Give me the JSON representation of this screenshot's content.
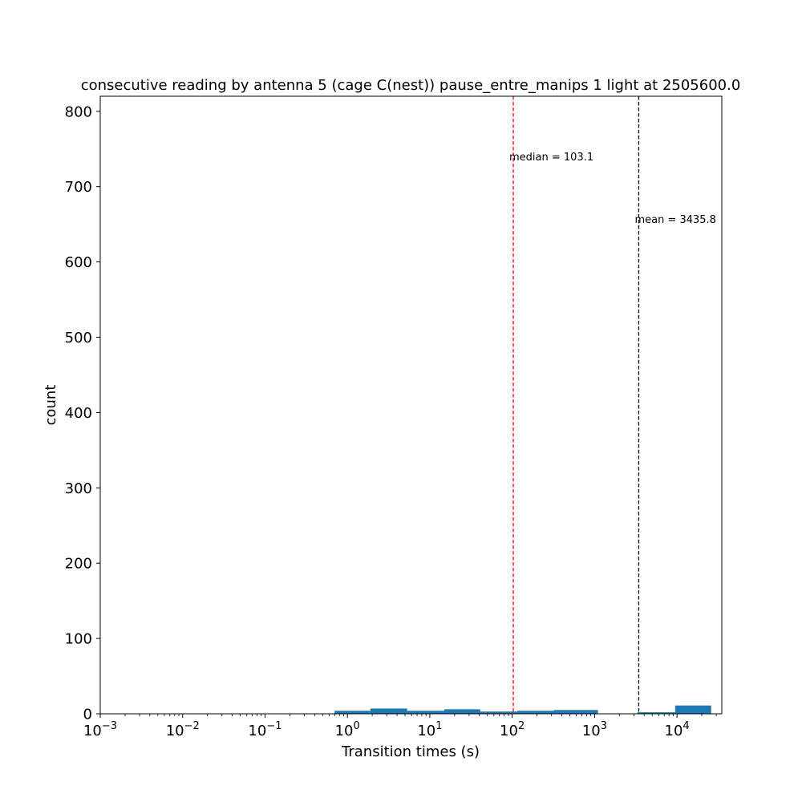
{
  "chart_data": {
    "type": "bar",
    "title": "consecutive reading by antenna 5 (cage C(nest)) pause_entre_manips 1 light at 2505600.0",
    "xlabel": "Transition times (s)",
    "ylabel": "count",
    "x_scale": "log",
    "xlim": [
      0.001,
      35000
    ],
    "ylim": [
      0,
      820
    ],
    "x_ticks": [
      {
        "value": 0.001,
        "base": "10",
        "exp": "−3"
      },
      {
        "value": 0.01,
        "base": "10",
        "exp": "−2"
      },
      {
        "value": 0.1,
        "base": "10",
        "exp": "−1"
      },
      {
        "value": 1,
        "base": "10",
        "exp": "0"
      },
      {
        "value": 10,
        "base": "10",
        "exp": "1"
      },
      {
        "value": 100,
        "base": "10",
        "exp": "2"
      },
      {
        "value": 1000,
        "base": "10",
        "exp": "3"
      },
      {
        "value": 10000,
        "base": "10",
        "exp": "4"
      }
    ],
    "y_ticks": [
      0,
      100,
      200,
      300,
      400,
      500,
      600,
      700,
      800
    ],
    "bar_color": "#1f77b4",
    "bins": [
      {
        "x0": 0.7,
        "x1": 1.9,
        "count": 4
      },
      {
        "x0": 1.9,
        "x1": 5.3,
        "count": 7
      },
      {
        "x0": 5.3,
        "x1": 15,
        "count": 4
      },
      {
        "x0": 15,
        "x1": 41,
        "count": 6
      },
      {
        "x0": 41,
        "x1": 115,
        "count": 3
      },
      {
        "x0": 115,
        "x1": 320,
        "count": 4
      },
      {
        "x0": 320,
        "x1": 1100,
        "count": 5
      },
      {
        "x0": 1100,
        "x1": 3300,
        "count": 0
      },
      {
        "x0": 3300,
        "x1": 9500,
        "count": 2
      },
      {
        "x0": 9500,
        "x1": 26000,
        "count": 11
      }
    ],
    "reference_lines": [
      {
        "name": "median",
        "x": 103.1,
        "color": "#ff0000",
        "label": "median = 103.1",
        "label_y": 740
      },
      {
        "name": "mean",
        "x": 3435.8,
        "color": "#000000",
        "label": "mean = 3435.8",
        "label_y": 657
      }
    ],
    "grid": false,
    "legend": "none"
  }
}
